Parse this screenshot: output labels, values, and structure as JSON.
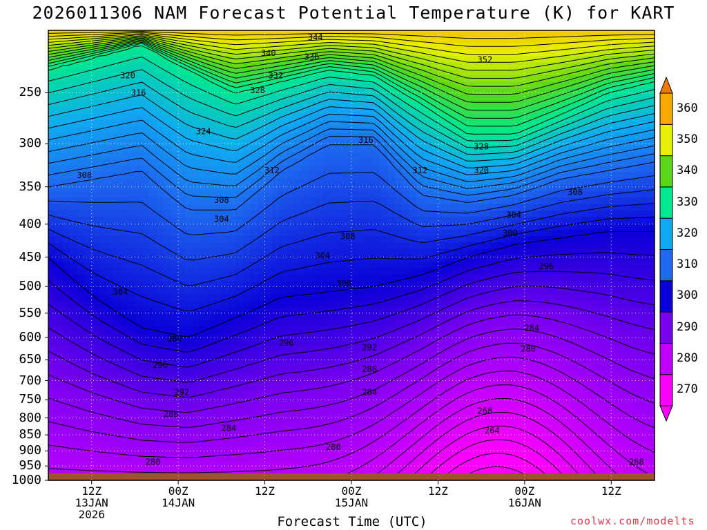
{
  "chart_data": {
    "type": "heatmap",
    "title": "2026011306 NAM Forecast Potential Temperature (K) for KART",
    "xlabel": "Forecast Time (UTC)",
    "ylabel": "",
    "y_scale": "log-pressure",
    "y_reversed": true,
    "ylim_hPa": [
      1000,
      200
    ],
    "y_ticks": [
      "250",
      "300",
      "350",
      "400",
      "450",
      "500",
      "550",
      "600",
      "650",
      "700",
      "750",
      "800",
      "850",
      "900",
      "950",
      "1000"
    ],
    "x_ticks": [
      {
        "hour": 6,
        "lines": [
          "12Z",
          "13JAN",
          "2026"
        ]
      },
      {
        "hour": 18,
        "lines": [
          "00Z",
          "14JAN"
        ]
      },
      {
        "hour": 30,
        "lines": [
          "12Z"
        ]
      },
      {
        "hour": 42,
        "lines": [
          "00Z",
          "15JAN"
        ]
      },
      {
        "hour": 54,
        "lines": [
          "12Z"
        ]
      },
      {
        "hour": 66,
        "lines": [
          "00Z",
          "16JAN"
        ]
      },
      {
        "hour": 78,
        "lines": [
          "12Z"
        ]
      }
    ],
    "xlim_hours": [
      0,
      84
    ],
    "grid": true,
    "colorbar": {
      "levels": [
        270,
        280,
        290,
        300,
        310,
        320,
        330,
        340,
        350,
        360
      ],
      "labels": [
        "270",
        "280",
        "290",
        "300",
        "310",
        "320",
        "330",
        "340",
        "350",
        "360"
      ],
      "colors": [
        "#ff00ff",
        "#c000ff",
        "#7a00f0",
        "#0a00d8",
        "#1e6af0",
        "#10aaf2",
        "#00e890",
        "#58d818",
        "#e8f000",
        "#f8a800"
      ],
      "extend": "both"
    },
    "contour_interval": 2,
    "isentropes": [
      {
        "theta": 300,
        "p": [
          450,
          520,
          580,
          600,
          560,
          520,
          510,
          500,
          480,
          450,
          430,
          420,
          410,
          410
        ]
      },
      {
        "theta": 310,
        "p": [
          350,
          340,
          330,
          380,
          380,
          330,
          300,
          300,
          360,
          370,
          360,
          340,
          330,
          320
        ]
      },
      {
        "theta": 330,
        "p": [
          230,
          220,
          210,
          230,
          250,
          240,
          230,
          235,
          260,
          290,
          290,
          270,
          250,
          240
        ]
      }
    ],
    "contour_labels": [
      {
        "text": "344",
        "hour": 37,
        "p": 205
      },
      {
        "text": "340",
        "hour": 30.5,
        "p": 217
      },
      {
        "text": "336",
        "hour": 36.5,
        "p": 220
      },
      {
        "text": "332",
        "hour": 31.5,
        "p": 235
      },
      {
        "text": "328",
        "hour": 29,
        "p": 248
      },
      {
        "text": "320",
        "hour": 11,
        "p": 235
      },
      {
        "text": "316",
        "hour": 12.5,
        "p": 250
      },
      {
        "text": "324",
        "hour": 21.5,
        "p": 287
      },
      {
        "text": "316",
        "hour": 44,
        "p": 296
      },
      {
        "text": "352",
        "hour": 60.5,
        "p": 222
      },
      {
        "text": "328",
        "hour": 60,
        "p": 303
      },
      {
        "text": "320",
        "hour": 60,
        "p": 330
      },
      {
        "text": "312",
        "hour": 31,
        "p": 330
      },
      {
        "text": "312",
        "hour": 51.5,
        "p": 330
      },
      {
        "text": "308",
        "hour": 5,
        "p": 336
      },
      {
        "text": "308",
        "hour": 24,
        "p": 367
      },
      {
        "text": "308",
        "hour": 73,
        "p": 357
      },
      {
        "text": "304",
        "hour": 24,
        "p": 393
      },
      {
        "text": "304",
        "hour": 64.5,
        "p": 387
      },
      {
        "text": "300",
        "hour": 64,
        "p": 413
      },
      {
        "text": "308",
        "hour": 41.5,
        "p": 418
      },
      {
        "text": "304",
        "hour": 38,
        "p": 448
      },
      {
        "text": "296",
        "hour": 69,
        "p": 465
      },
      {
        "text": "304",
        "hour": 10,
        "p": 510
      },
      {
        "text": "300",
        "hour": 41,
        "p": 495
      },
      {
        "text": "284",
        "hour": 67,
        "p": 580
      },
      {
        "text": "300",
        "hour": 17.5,
        "p": 603
      },
      {
        "text": "296",
        "hour": 33,
        "p": 612
      },
      {
        "text": "292",
        "hour": 44.5,
        "p": 622
      },
      {
        "text": "280",
        "hour": 66.5,
        "p": 625
      },
      {
        "text": "296",
        "hour": 15.5,
        "p": 662
      },
      {
        "text": "288",
        "hour": 44.5,
        "p": 672
      },
      {
        "text": "292",
        "hour": 18.5,
        "p": 730
      },
      {
        "text": "284",
        "hour": 44.5,
        "p": 730
      },
      {
        "text": "288",
        "hour": 17,
        "p": 790
      },
      {
        "text": "268",
        "hour": 60.5,
        "p": 780
      },
      {
        "text": "284",
        "hour": 25,
        "p": 830
      },
      {
        "text": "264",
        "hour": 61.5,
        "p": 837
      },
      {
        "text": "280",
        "hour": 39.5,
        "p": 888
      },
      {
        "text": "280",
        "hour": 14.5,
        "p": 937
      },
      {
        "text": "268",
        "hour": 81.5,
        "p": 937
      }
    ]
  },
  "credit": "coolwx.com/modelts"
}
